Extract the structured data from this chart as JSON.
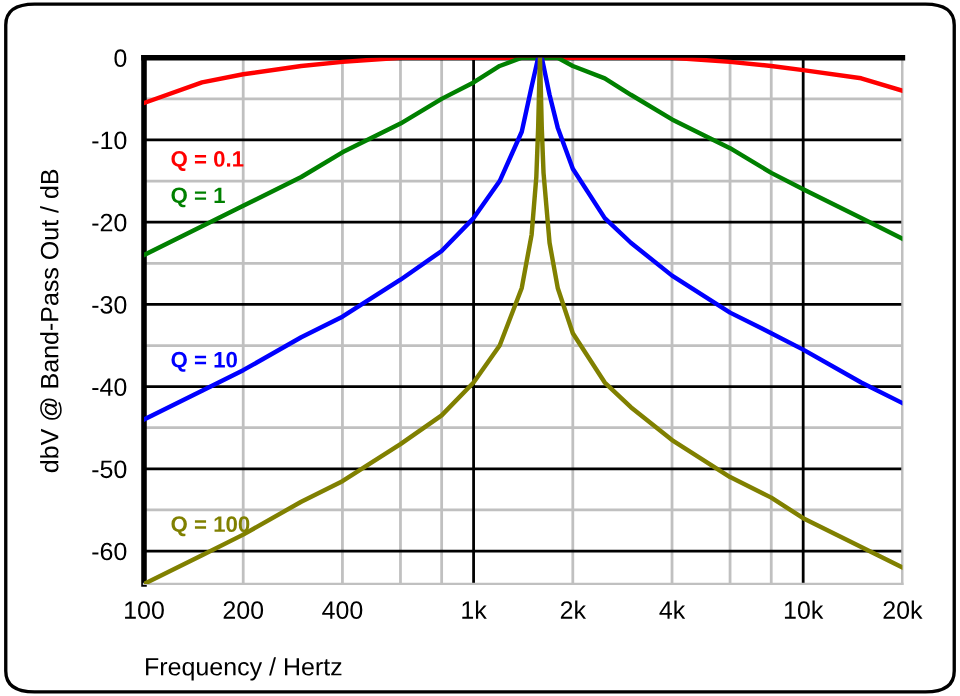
{
  "chart_data": {
    "type": "line",
    "xlabel": "Frequency / Hertz",
    "ylabel": "dbV @ Band-Pass Out / dB",
    "x": [
      100,
      150,
      200,
      300,
      400,
      600,
      800,
      1000,
      1200,
      1400,
      1500,
      1550,
      1570,
      1580,
      1590,
      1600,
      1610,
      1630,
      1700,
      1800,
      2000,
      2500,
      3000,
      4000,
      6000,
      8000,
      10000,
      15000,
      20000
    ],
    "series": [
      {
        "name": "Q = 0.1",
        "color": "#ff0000",
        "values": [
          -5.5,
          -3,
          -2,
          -1,
          -0.5,
          0,
          0,
          0,
          0,
          0,
          0,
          0,
          0,
          0,
          0,
          0,
          0,
          0,
          0,
          0,
          0,
          0,
          0,
          0,
          -0.5,
          -1,
          -1.5,
          -2.5,
          -4
        ]
      },
      {
        "name": "Q = 1",
        "color": "#008000",
        "values": [
          -24,
          -20.5,
          -18,
          -14.5,
          -11.5,
          -8,
          -5,
          -3,
          -1,
          0,
          0,
          0,
          0,
          0,
          0,
          0,
          0,
          0,
          0,
          0,
          -1,
          -2.5,
          -4.5,
          -7.5,
          -11,
          -14,
          -16,
          -19.5,
          -22
        ]
      },
      {
        "name": "Q = 10",
        "color": "#0000ff",
        "values": [
          -44,
          -40.5,
          -38,
          -34,
          -31.5,
          -27,
          -23.5,
          -19.5,
          -15,
          -9,
          -3.5,
          -1,
          0,
          0,
          0,
          0,
          0,
          -1,
          -4.5,
          -8.5,
          -13.5,
          -19.5,
          -22.5,
          -26.5,
          -31,
          -33.5,
          -35.5,
          -39.5,
          -42
        ]
      },
      {
        "name": "Q = 100",
        "color": "#808000",
        "values": [
          -64,
          -60.5,
          -58,
          -54,
          -51.5,
          -47,
          -43.5,
          -39.5,
          -35,
          -28,
          -21.5,
          -14.5,
          -8.5,
          -4,
          0,
          -4,
          -8.5,
          -14,
          -22.5,
          -28,
          -33.5,
          -39.5,
          -42.5,
          -46.5,
          -51,
          -53.5,
          -56,
          -59.5,
          -62
        ]
      }
    ],
    "log": "x",
    "xlim": [
      100,
      20000
    ],
    "ylim": [
      -64,
      0
    ],
    "xticks": [
      100,
      200,
      400,
      {
        "value": 600,
        "label": null
      },
      {
        "value": 800,
        "label": null
      },
      {
        "value": 1000,
        "label": "1k"
      },
      {
        "value": 2000,
        "label": "2k"
      },
      {
        "value": 4000,
        "label": "4k"
      },
      {
        "value": 6000,
        "label": null
      },
      {
        "value": 8000,
        "label": null
      },
      {
        "value": 10000,
        "label": "10k"
      },
      {
        "value": 20000,
        "label": "20k"
      }
    ],
    "yticks": [
      -60,
      -50,
      -40,
      -30,
      -20,
      -10,
      0
    ],
    "grid": true,
    "legend": false,
    "marker": "none",
    "line_style": "solid"
  }
}
